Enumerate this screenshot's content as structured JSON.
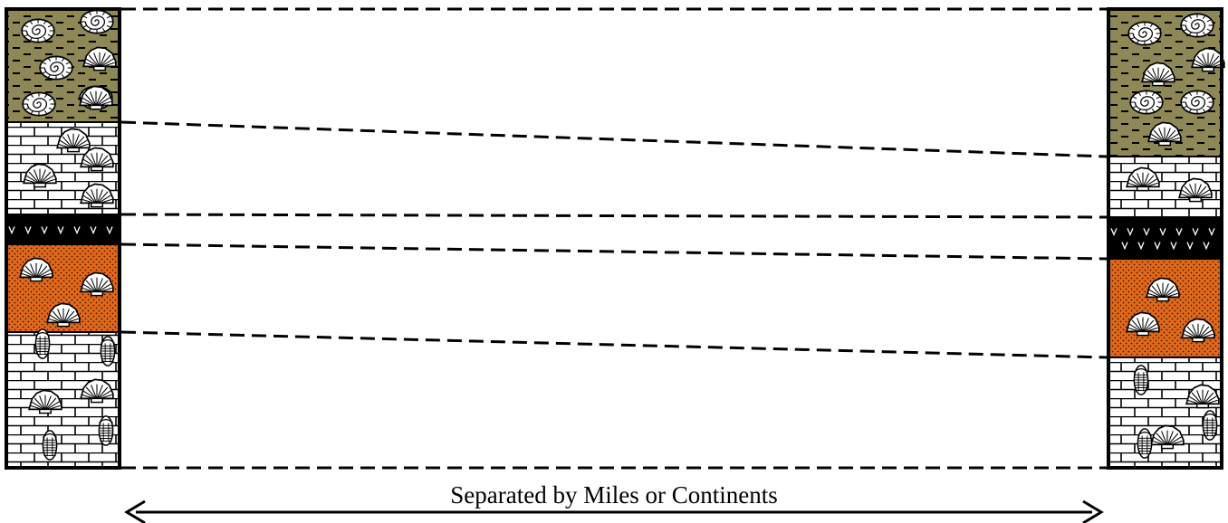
{
  "caption": "Separated by Miles or Continents",
  "colors": {
    "shale": "#8e8756",
    "sandstone": "#e2681a",
    "volcanic": "#000000",
    "limestone": "#ffffff",
    "line": "#000000"
  },
  "layer_order": [
    "shale",
    "limestone",
    "volcanic-ash",
    "sandstone",
    "limestone"
  ],
  "left_column": {
    "layers": [
      {
        "rock": "shale",
        "fossils": [
          "ammonite",
          "ammonite",
          "ammonite",
          "brachiopod",
          "ammonite",
          "ammonite",
          "brachiopod"
        ]
      },
      {
        "rock": "limestone",
        "fossils": [
          "brachiopod",
          "brachiopod",
          "brachiopod",
          "brachiopod"
        ]
      },
      {
        "rock": "volcanic-ash",
        "fossils": []
      },
      {
        "rock": "sandstone",
        "fossils": [
          "brachiopod",
          "brachiopod",
          "brachiopod"
        ]
      },
      {
        "rock": "limestone",
        "fossils": [
          "trilobite",
          "trilobite",
          "brachiopod",
          "brachiopod",
          "trilobite",
          "trilobite"
        ]
      }
    ]
  },
  "right_column": {
    "layers": [
      {
        "rock": "shale",
        "fossils": [
          "ammonite",
          "ammonite",
          "brachiopod",
          "brachiopod",
          "ammonite",
          "ammonite",
          "brachiopod"
        ]
      },
      {
        "rock": "limestone",
        "fossils": [
          "brachiopod",
          "brachiopod"
        ]
      },
      {
        "rock": "volcanic-ash",
        "fossils": []
      },
      {
        "rock": "sandstone",
        "fossils": [
          "brachiopod",
          "brachiopod",
          "brachiopod"
        ]
      },
      {
        "rock": "limestone",
        "fossils": [
          "trilobite",
          "brachiopod",
          "trilobite",
          "brachiopod",
          "trilobite"
        ]
      }
    ]
  }
}
